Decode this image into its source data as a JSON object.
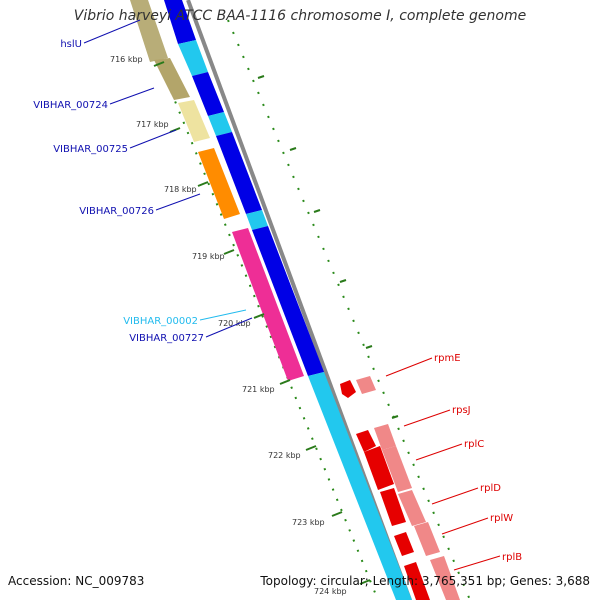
{
  "title": "Vibrio harveyi ATCC BAA-1116 chromosome I, complete genome",
  "footer": {
    "accession": "Accession: NC_009783",
    "summary": "Topology: circular; Length: 3,765,351 bp; Genes: 3,688"
  },
  "colors": {
    "cds_forward": "#0000e6",
    "cds_forward_light": "#22c8ee",
    "backbone": "#888888",
    "tick": "#2a7a1a",
    "label_blue": "#1010b0",
    "label_cyan": "#22bbee",
    "label_red": "#dd0000"
  },
  "scale_ticks": [
    "716 kbp",
    "717 kbp",
    "718 kbp",
    "719 kbp",
    "720 kbp",
    "721 kbp",
    "722 kbp",
    "723 kbp",
    "724 kbp"
  ],
  "gene_labels": [
    {
      "name": "hslU",
      "color": "blue"
    },
    {
      "name": "VIBHAR_00724",
      "color": "blue"
    },
    {
      "name": "VIBHAR_00725",
      "color": "blue"
    },
    {
      "name": "VIBHAR_00726",
      "color": "blue"
    },
    {
      "name": "VIBHAR_00002",
      "color": "cyan"
    },
    {
      "name": "VIBHAR_00727",
      "color": "blue"
    },
    {
      "name": "rpmE",
      "color": "red"
    },
    {
      "name": "rpsJ",
      "color": "red"
    },
    {
      "name": "rplC",
      "color": "red"
    },
    {
      "name": "rplD",
      "color": "red"
    },
    {
      "name": "rplW",
      "color": "red"
    },
    {
      "name": "rplB",
      "color": "red"
    }
  ]
}
